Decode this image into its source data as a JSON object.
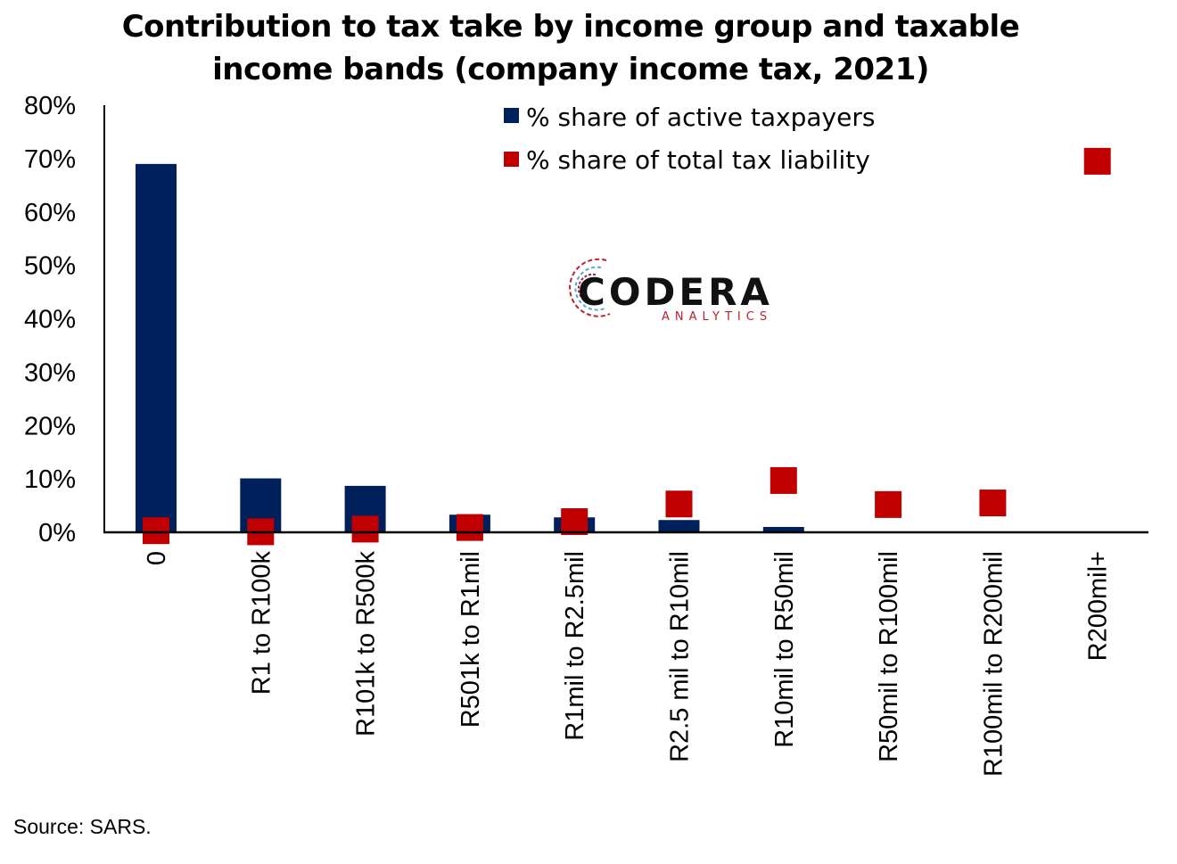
{
  "chart_data": {
    "type": "bar",
    "title": "Contribution to tax take by income group and taxable income bands (company income tax, 2021)",
    "title_lines": [
      "Contribution to tax take by income group and taxable",
      "income bands (company income tax, 2021)"
    ],
    "categories": [
      "0",
      "R1 to R100k",
      "R101k to R500k",
      "R501k to R1mil",
      "R1mil to R2.5mil",
      "R2.5 mil to R10mil",
      "R10mil to R50mil",
      "R50mil to R100mil",
      "R100mil to R200mil",
      "R200mil+"
    ],
    "series": [
      {
        "name": "% share of active taxpayers",
        "type": "bar",
        "color": "#00205b",
        "values": [
          69,
          10.1,
          8.7,
          3.3,
          2.8,
          2.3,
          1.0,
          0,
          0,
          0
        ]
      },
      {
        "name": "% share of total tax liability",
        "type": "marker-square",
        "color": "#c00000",
        "values": [
          0.3,
          0.1,
          0.6,
          0.9,
          2.0,
          5.3,
          9.7,
          5.2,
          5.5,
          69.5
        ]
      }
    ],
    "ylim": [
      0,
      80
    ],
    "yticks": [
      "0%",
      "10%",
      "20%",
      "30%",
      "40%",
      "50%",
      "60%",
      "70%",
      "80%"
    ],
    "xlabel": "",
    "ylabel": "",
    "grid": false,
    "legend_position": "top-center",
    "source": "Source: SARS.",
    "logo": {
      "text": "CODERA",
      "subtext": "ANALYTICS"
    }
  }
}
